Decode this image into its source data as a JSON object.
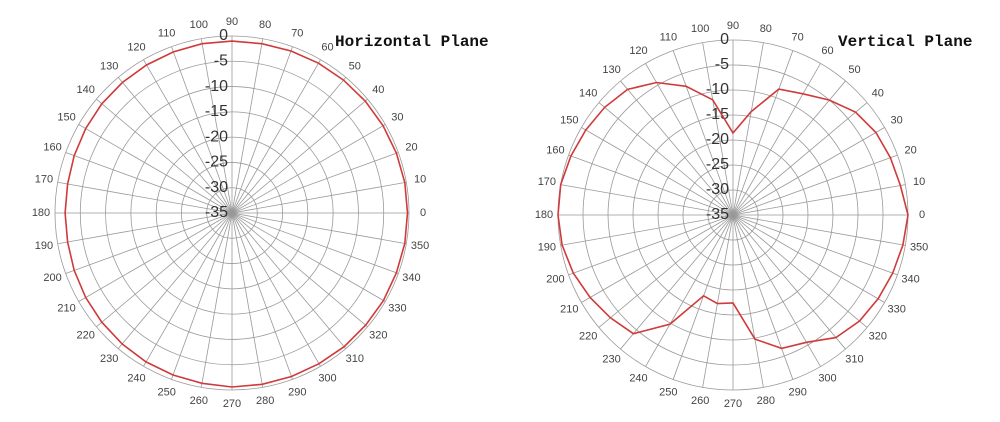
{
  "chart_data": [
    {
      "type": "polar",
      "title": "Horizontal Plane",
      "theta": [
        0,
        10,
        20,
        30,
        40,
        50,
        60,
        70,
        80,
        90,
        100,
        110,
        120,
        130,
        140,
        150,
        160,
        170,
        180,
        190,
        200,
        210,
        220,
        230,
        240,
        250,
        260,
        270,
        280,
        290,
        300,
        310,
        320,
        330,
        340,
        350
      ],
      "series": [
        {
          "color": "#d03a3a",
          "values": [
            -0.3,
            -0.3,
            -0.4,
            -0.5,
            -0.6,
            -0.7,
            -0.8,
            -0.9,
            -1,
            -1,
            -1,
            -1.1,
            -1.2,
            -1.3,
            -1.4,
            -1.6,
            -1.8,
            -2,
            -2,
            -2,
            -1.8,
            -1.6,
            -1.4,
            -1.2,
            -1,
            -0.9,
            -0.8,
            -0.6,
            -0.6,
            -0.6,
            -0.6,
            -0.5,
            -0.5,
            -0.4,
            -0.4,
            -0.3
          ]
        }
      ],
      "rlim": [
        -35,
        0
      ],
      "rticks": [
        0,
        -5,
        -10,
        -15,
        -20,
        -25,
        -30,
        -35
      ],
      "grid": true
    },
    {
      "type": "polar",
      "title": "Vertical Plane",
      "theta": [
        0,
        10,
        20,
        30,
        40,
        50,
        60,
        70,
        80,
        90,
        100,
        110,
        120,
        130,
        140,
        150,
        160,
        170,
        180,
        190,
        200,
        210,
        220,
        230,
        240,
        250,
        260,
        270,
        280,
        290,
        300,
        310,
        320,
        330,
        340,
        350
      ],
      "series": [
        {
          "color": "#d03a3a",
          "values": [
            0,
            -1,
            -1.5,
            -2,
            -3,
            -5,
            -7,
            -8.2,
            -14,
            -18.6,
            -11.6,
            -7.6,
            -4.4,
            -2.2,
            -1.5,
            -1,
            -0.5,
            0,
            0,
            -0.3,
            -1,
            -2,
            -3,
            -4,
            -9.8,
            -17.8,
            -17,
            -17.4,
            -9.8,
            -6.6,
            -5.6,
            -3,
            -2,
            -1.5,
            -1,
            -0.5
          ]
        }
      ],
      "rlim": [
        -35,
        0
      ],
      "rticks": [
        0,
        -5,
        -10,
        -15,
        -20,
        -25,
        -30,
        -35
      ],
      "grid": true
    }
  ]
}
